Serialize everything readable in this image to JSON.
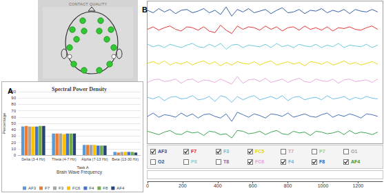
{
  "chart_data": [
    {
      "type": "bar",
      "title": "Spectral Power Density",
      "subtitle": "Task A",
      "xlabel": "Brain Wave Frequency",
      "ylabel": "Percentage",
      "annotations": [
        "A"
      ],
      "categories": [
        "Delta (3-4 Hz)",
        "Theta (4-7 Hz)",
        "Alpha (7-13 Hz)",
        "Beta (13-30 Hz)"
      ],
      "series": [
        {
          "name": "AF3",
          "color": "#5b9bd5",
          "values": [
            45,
            34,
            16,
            5
          ]
        },
        {
          "name": "F7",
          "color": "#ed7d31",
          "values": [
            46,
            34,
            16,
            4
          ]
        },
        {
          "name": "F3",
          "color": "#a5a5a5",
          "values": [
            45,
            34,
            16,
            5
          ]
        },
        {
          "name": "FC6",
          "color": "#ffc000",
          "values": [
            45,
            33,
            16,
            5
          ]
        },
        {
          "name": "F4",
          "color": "#4472c4",
          "values": [
            45,
            34,
            15,
            5
          ]
        },
        {
          "name": "F8",
          "color": "#70ad47",
          "values": [
            46,
            34,
            15,
            5
          ]
        },
        {
          "name": "AF4",
          "color": "#264478",
          "values": [
            46,
            34,
            15,
            4
          ]
        }
      ],
      "ylim": [
        0,
        100
      ],
      "yticks": [
        0,
        10,
        20,
        30,
        40,
        50,
        60,
        70,
        80,
        90,
        100
      ],
      "grid": true,
      "legend": "bottom"
    },
    {
      "type": "line",
      "annotations": [
        "B"
      ],
      "x": [
        0,
        32,
        64,
        96,
        128,
        160,
        192,
        224,
        256,
        288,
        320,
        352,
        384,
        416,
        448,
        480,
        512,
        544,
        576,
        608,
        640,
        672,
        704,
        736,
        768,
        800,
        832,
        864,
        896,
        928,
        960,
        992,
        1024,
        1056,
        1088,
        1120,
        1152,
        1184,
        1216,
        1248,
        1280,
        1312
      ],
      "series": [
        {
          "name": "AF3",
          "color": "#1f4e9c",
          "values": [
            1,
            -2,
            3,
            -1,
            2,
            -3,
            1,
            2,
            -2,
            0,
            3,
            -2,
            1,
            -4,
            5,
            -6,
            2,
            -1,
            3,
            -2,
            0,
            2,
            -3,
            1,
            4,
            -2,
            -1,
            2,
            -3,
            1,
            0,
            3,
            -2,
            1,
            -1,
            2,
            -3,
            2,
            0,
            -1,
            2,
            -1
          ]
        },
        {
          "name": "F7",
          "color": "#e02020",
          "values": [
            -1,
            2,
            -2,
            1,
            3,
            -1,
            -3,
            2,
            1,
            -2,
            2,
            -3,
            -5,
            4,
            -2,
            -6,
            3,
            -1,
            2,
            1,
            -2,
            3,
            -1,
            2,
            -3,
            1,
            2,
            -2,
            3,
            -1,
            1,
            -2,
            2,
            -3,
            1,
            0,
            2,
            -1,
            -2,
            1,
            3,
            -1
          ]
        },
        {
          "name": "F3",
          "color": "#5cc4d4",
          "values": [
            2,
            -1,
            1,
            -2,
            2,
            0,
            -2,
            1,
            3,
            -1,
            -2,
            2,
            -1,
            3,
            -4,
            1,
            2,
            -2,
            1,
            0,
            -1,
            2,
            -2,
            3,
            -1,
            1,
            -2,
            2,
            0,
            -1,
            2,
            -2,
            1,
            -1,
            3,
            -2,
            1,
            0,
            -1,
            2,
            -2,
            1
          ]
        },
        {
          "name": "FC5",
          "color": "#e6d800",
          "values": [
            0,
            2,
            -1,
            3,
            -2,
            1,
            -1,
            2,
            -2,
            1,
            3,
            -1,
            2,
            -3,
            1,
            -2,
            2,
            0,
            -1,
            2,
            -2,
            1,
            3,
            -2,
            0,
            2,
            -1,
            1,
            -3,
            2,
            1,
            -1,
            2,
            -2,
            0,
            3,
            -1,
            1,
            -2,
            0,
            2,
            -1
          ]
        },
        {
          "name": "FC6",
          "color": "#e6a0dc",
          "values": [
            -2,
            1,
            2,
            -1,
            0,
            2,
            -3,
            1,
            2,
            -2,
            1,
            0,
            -2,
            2,
            -1,
            -4,
            5,
            -3,
            1,
            2,
            -1,
            3,
            -2,
            0,
            2,
            -2,
            1,
            3,
            -1,
            -2,
            2,
            0,
            -1,
            2,
            -3,
            1,
            2,
            -1,
            0,
            1,
            -2,
            2
          ]
        },
        {
          "name": "F4",
          "color": "#60b8e8",
          "values": [
            1,
            -1,
            2,
            -3,
            1,
            2,
            -1,
            0,
            3,
            -2,
            -1,
            2,
            -4,
            3,
            1,
            -5,
            2,
            -2,
            1,
            3,
            -2,
            0,
            2,
            -1,
            3,
            -3,
            1,
            2,
            -2,
            0,
            1,
            -2,
            3,
            -1,
            0,
            2,
            -2,
            1,
            -1,
            2,
            0,
            -1
          ]
        },
        {
          "name": "F8",
          "color": "#3060b0",
          "values": [
            -1,
            3,
            -2,
            1,
            0,
            -2,
            3,
            -1,
            2,
            -3,
            1,
            2,
            -1,
            -3,
            2,
            -7,
            4,
            1,
            -2,
            2,
            0,
            -3,
            2,
            1,
            -1,
            3,
            -2,
            0,
            2,
            -1,
            -2,
            1,
            3,
            -2,
            1,
            -1,
            2,
            0,
            -3,
            2,
            1,
            -1
          ]
        },
        {
          "name": "AF4",
          "color": "#2a9a40",
          "values": [
            2,
            0,
            -2,
            1,
            3,
            -1,
            -2,
            2,
            0,
            1,
            -3,
            2,
            1,
            -2,
            -1,
            -6,
            3,
            2,
            -1,
            0,
            2,
            -2,
            1,
            3,
            -1,
            -2,
            2,
            0,
            1,
            -3,
            2,
            1,
            -1,
            0,
            2,
            -2,
            3,
            -1,
            1,
            0,
            -2,
            1
          ]
        }
      ],
      "channels": [
        {
          "name": "AF3",
          "checked": true,
          "color": "#1f4e9c"
        },
        {
          "name": "F7",
          "checked": true,
          "color": "#e02020"
        },
        {
          "name": "F3",
          "checked": true,
          "color": "#5cc4d4"
        },
        {
          "name": "FC5",
          "checked": true,
          "color": "#e6d800"
        },
        {
          "name": "T7",
          "checked": false,
          "color": "#d9a0a0"
        },
        {
          "name": "P7",
          "checked": false,
          "color": "#9ad07a"
        },
        {
          "name": "O1",
          "checked": false,
          "color": "#a0a0a0"
        },
        {
          "name": "O2",
          "checked": false,
          "color": "#2050a0"
        },
        {
          "name": "P8",
          "checked": false,
          "color": "#8fd0d0"
        },
        {
          "name": "T8",
          "checked": false,
          "color": "#9060a0"
        },
        {
          "name": "FC6",
          "checked": true,
          "color": "#e6a0dc"
        },
        {
          "name": "F4",
          "checked": true,
          "color": "#60b8e8"
        },
        {
          "name": "F8",
          "checked": true,
          "color": "#3060b0"
        },
        {
          "name": "AF4",
          "checked": true,
          "color": "#2a9a40"
        }
      ],
      "xlim": [
        0,
        1340
      ],
      "xticks": [
        0,
        200,
        400,
        600,
        800,
        1000,
        1200
      ],
      "ylim": [
        -10,
        10
      ],
      "tick_labels": "x",
      "grid": false
    }
  ],
  "contact_quality": {
    "title": "CONTACT QUALITY"
  }
}
